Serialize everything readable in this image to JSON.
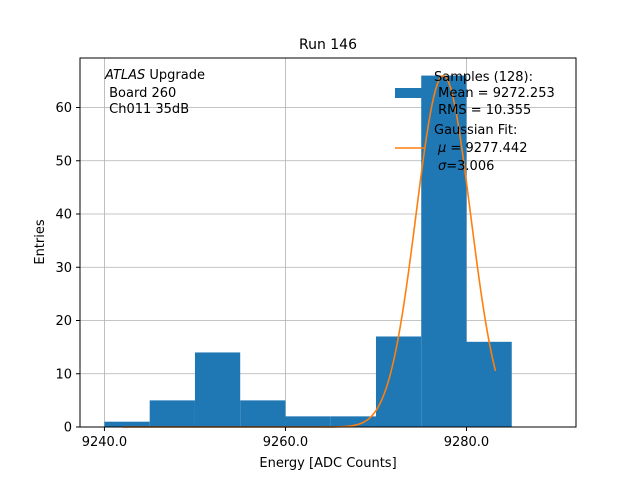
{
  "chart_data": {
    "type": "bar",
    "title": "Run 146",
    "xlabel": "Energy [ADC Counts]",
    "ylabel": "Entries",
    "xlim": [
      9237.3,
      9292.1
    ],
    "ylim": [
      0,
      69.3
    ],
    "grid": true,
    "x_ticks": [
      9240,
      9260,
      9280
    ],
    "x_tick_labels": [
      "9240.0",
      "9260.0",
      "9280.0"
    ],
    "y_ticks": [
      0,
      10,
      20,
      30,
      40,
      50,
      60
    ],
    "y_tick_labels": [
      "0",
      "10",
      "20",
      "30",
      "40",
      "50",
      "60"
    ],
    "histogram": {
      "name": "Samples",
      "color": "#1f77b4",
      "bin_edges": [
        9240,
        9245,
        9250,
        9255,
        9260,
        9265,
        9270,
        9275,
        9280,
        9285
      ],
      "counts": [
        1,
        5,
        14,
        5,
        2,
        2,
        17,
        66,
        16
      ]
    },
    "fit": {
      "name": "Gaussian Fit",
      "color": "#ff7f0e",
      "mu": 9277.442,
      "sigma": 3.006,
      "amplitude": 66,
      "x_range": [
        9242,
        9283.2
      ]
    },
    "annotation": {
      "italic": "ATLAS",
      "line1_rest": " Upgrade",
      "line2": " Board 260",
      "line3": " Ch011 35dB"
    },
    "legend": {
      "position": "top-right",
      "samples_line1": "Samples (128):",
      "samples_line2": " Mean = 9272.253",
      "samples_line3": " RMS = 10.355",
      "fit_line1": "Gaussian Fit:",
      "fit_line2_sym": "μ",
      "fit_line2_rest": " = 9277.442",
      "fit_line3_sym": "σ",
      "fit_line3_rest": "=3.006"
    }
  }
}
